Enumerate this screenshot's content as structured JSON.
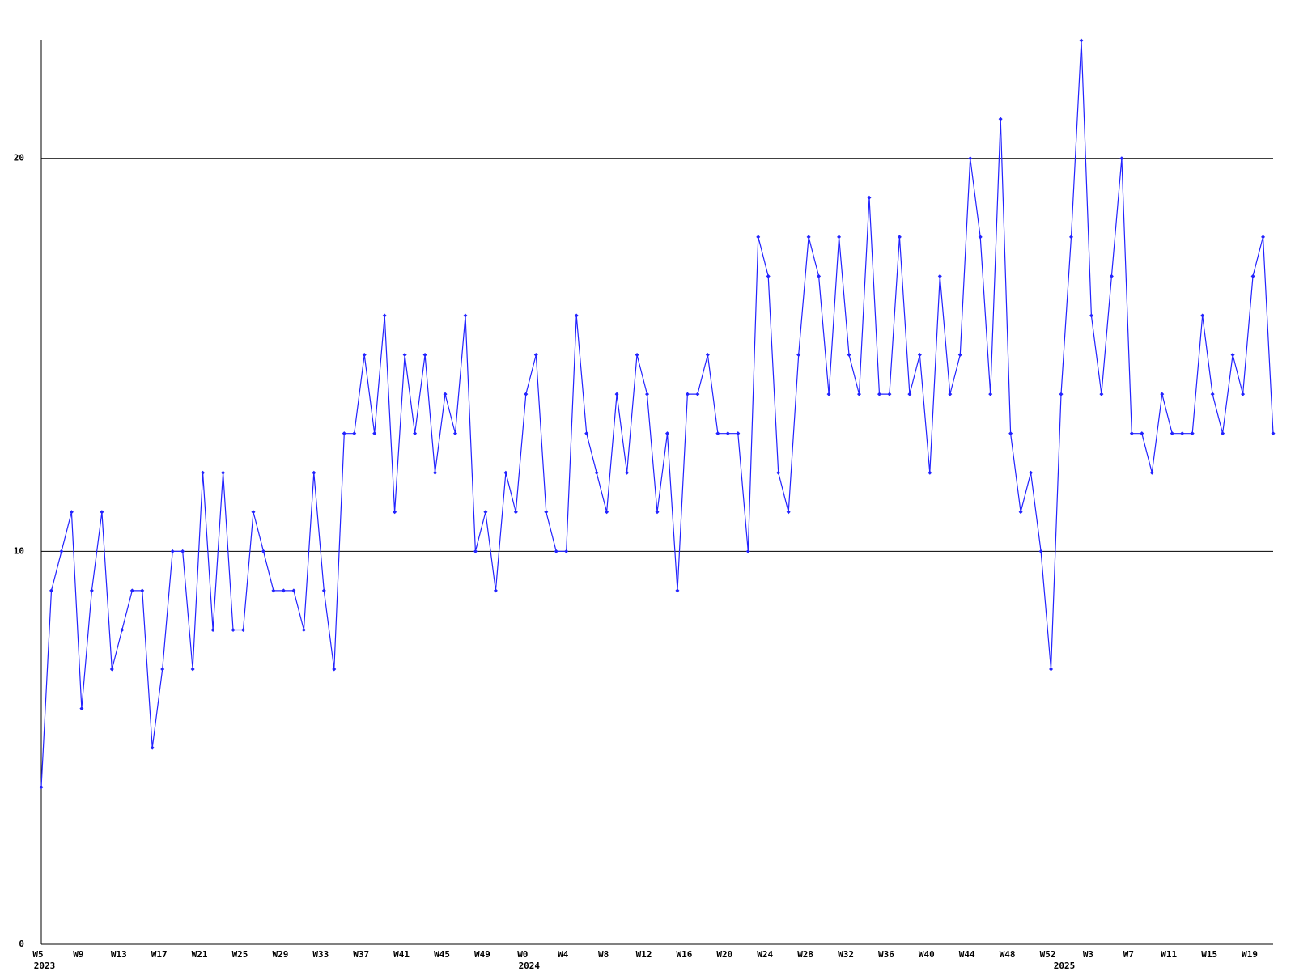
{
  "chart_data": {
    "type": "line",
    "categories": [
      "W5",
      null,
      null,
      null,
      "W9",
      null,
      null,
      null,
      "W13",
      null,
      null,
      null,
      "W17",
      null,
      null,
      null,
      "W21",
      null,
      null,
      null,
      "W25",
      null,
      null,
      null,
      "W29",
      null,
      null,
      null,
      "W33",
      null,
      null,
      null,
      "W37",
      null,
      null,
      null,
      "W41",
      null,
      null,
      null,
      "W45",
      null,
      null,
      null,
      "W49",
      null,
      null,
      null,
      "W0",
      null,
      null,
      null,
      "W4",
      null,
      null,
      null,
      "W8",
      null,
      null,
      null,
      "W12",
      null,
      null,
      null,
      "W16",
      null,
      null,
      null,
      "W20",
      null,
      null,
      null,
      "W24",
      null,
      null,
      null,
      "W28",
      null,
      null,
      null,
      "W32",
      null,
      null,
      null,
      "W36",
      null,
      null,
      null,
      "W40",
      null,
      null,
      null,
      "W44",
      null,
      null,
      null,
      "W48",
      null,
      null,
      null,
      "W52",
      null,
      null,
      null,
      "W3",
      null,
      null,
      null,
      "W7",
      null,
      null,
      null,
      "W11",
      null,
      null,
      null,
      "W15",
      null,
      null,
      null,
      "W19",
      null,
      null
    ],
    "year_labels": [
      "2023",
      null,
      null,
      null,
      null,
      null,
      null,
      null,
      null,
      null,
      null,
      null,
      null,
      null,
      null,
      null,
      null,
      null,
      null,
      null,
      null,
      null,
      null,
      null,
      null,
      null,
      null,
      null,
      null,
      null,
      null,
      null,
      null,
      null,
      null,
      null,
      null,
      null,
      null,
      null,
      null,
      null,
      null,
      null,
      null,
      null,
      null,
      null,
      "2024",
      null,
      null,
      null,
      null,
      null,
      null,
      null,
      null,
      null,
      null,
      null,
      null,
      null,
      null,
      null,
      null,
      null,
      null,
      null,
      null,
      null,
      null,
      null,
      null,
      null,
      null,
      null,
      null,
      null,
      null,
      null,
      null,
      null,
      null,
      null,
      null,
      null,
      null,
      null,
      null,
      null,
      null,
      null,
      null,
      null,
      null,
      null,
      null,
      null,
      null,
      null,
      null,
      "2025",
      null,
      null,
      null,
      null,
      null,
      null,
      null,
      null,
      null,
      null,
      null,
      null,
      null,
      null,
      null,
      null,
      null,
      null,
      null,
      null,
      null
    ],
    "values": [
      4,
      9,
      10,
      11,
      6,
      9,
      11,
      7,
      8,
      9,
      9,
      5,
      7,
      10,
      10,
      7,
      12,
      8,
      12,
      8,
      8,
      11,
      10,
      9,
      9,
      9,
      8,
      12,
      9,
      7,
      13,
      13,
      15,
      13,
      16,
      11,
      15,
      13,
      15,
      12,
      14,
      13,
      16,
      10,
      11,
      9,
      12,
      11,
      14,
      15,
      11,
      10,
      10,
      16,
      13,
      12,
      11,
      14,
      12,
      15,
      14,
      11,
      13,
      9,
      14,
      14,
      15,
      13,
      13,
      13,
      10,
      18,
      17,
      12,
      11,
      15,
      18,
      17,
      14,
      18,
      15,
      14,
      19,
      14,
      14,
      18,
      14,
      15,
      12,
      17,
      14,
      15,
      20,
      18,
      14,
      21,
      13,
      11,
      12,
      10,
      7,
      14,
      18,
      23,
      16,
      14,
      17,
      20,
      13,
      13,
      12,
      14,
      13,
      13,
      13,
      16,
      14,
      13,
      15,
      14,
      17,
      18,
      13
    ],
    "color": "#2222ff",
    "ylim": [
      0,
      23
    ],
    "yticks": [
      0,
      10,
      20
    ],
    "grid": true
  }
}
